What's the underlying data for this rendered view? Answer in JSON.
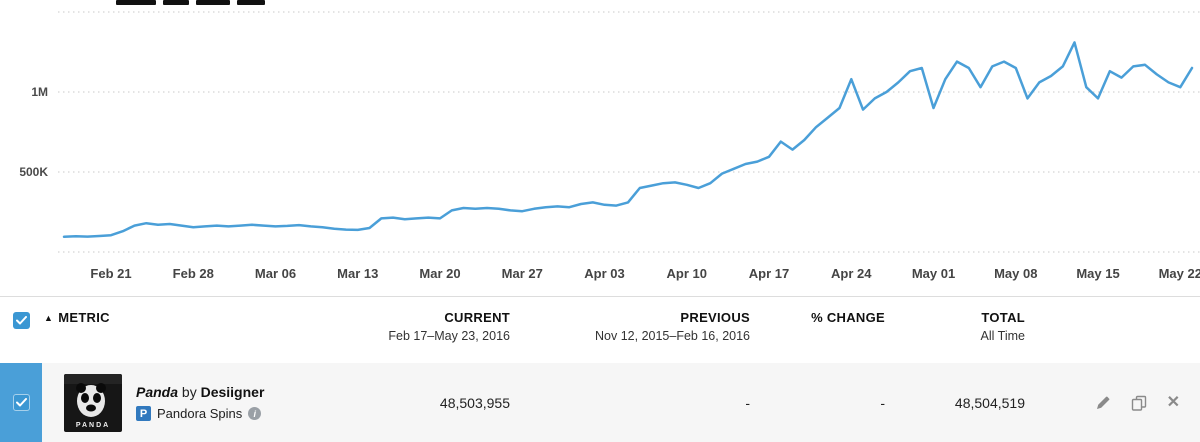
{
  "colors": {
    "line": "#4a9fd8",
    "accent_checkbox": "#3b97d3",
    "row_band": "#4a9fd8",
    "gridline": "#c9c9c9"
  },
  "chart": {
    "y_axis_labels": [
      {
        "text": "1M",
        "value": 1000000
      },
      {
        "text": "500K",
        "value": 500000
      }
    ],
    "gridline_values": [
      1500000,
      1000000,
      500000,
      0
    ],
    "x_tick_labels": [
      "Feb 21",
      "Feb 28",
      "Mar 06",
      "Mar 13",
      "Mar 20",
      "Mar 27",
      "Apr 03",
      "Apr 10",
      "Apr 17",
      "Apr 24",
      "May 01",
      "May 08",
      "May 15",
      "May 22"
    ]
  },
  "chart_data": {
    "type": "line",
    "title": "Pandora Spins — Panda by Desiigner",
    "xlabel": "",
    "ylabel": "",
    "ylim": [
      0,
      1500000
    ],
    "legend": "none",
    "grid": "horizontal-dotted",
    "x": [
      "Feb 17",
      "Feb 18",
      "Feb 19",
      "Feb 20",
      "Feb 21",
      "Feb 22",
      "Feb 23",
      "Feb 24",
      "Feb 25",
      "Feb 26",
      "Feb 27",
      "Feb 28",
      "Feb 29",
      "Mar 01",
      "Mar 02",
      "Mar 03",
      "Mar 04",
      "Mar 05",
      "Mar 06",
      "Mar 07",
      "Mar 08",
      "Mar 09",
      "Mar 10",
      "Mar 11",
      "Mar 12",
      "Mar 13",
      "Mar 14",
      "Mar 15",
      "Mar 16",
      "Mar 17",
      "Mar 18",
      "Mar 19",
      "Mar 20",
      "Mar 21",
      "Mar 22",
      "Mar 23",
      "Mar 24",
      "Mar 25",
      "Mar 26",
      "Mar 27",
      "Mar 28",
      "Mar 29",
      "Mar 30",
      "Mar 31",
      "Apr 01",
      "Apr 02",
      "Apr 03",
      "Apr 04",
      "Apr 05",
      "Apr 06",
      "Apr 07",
      "Apr 08",
      "Apr 09",
      "Apr 10",
      "Apr 11",
      "Apr 12",
      "Apr 13",
      "Apr 14",
      "Apr 15",
      "Apr 16",
      "Apr 17",
      "Apr 18",
      "Apr 19",
      "Apr 20",
      "Apr 21",
      "Apr 22",
      "Apr 23",
      "Apr 24",
      "Apr 25",
      "Apr 26",
      "Apr 27",
      "Apr 28",
      "Apr 29",
      "Apr 30",
      "May 01",
      "May 02",
      "May 03",
      "May 04",
      "May 05",
      "May 06",
      "May 07",
      "May 08",
      "May 09",
      "May 10",
      "May 11",
      "May 12",
      "May 13",
      "May 14",
      "May 15",
      "May 16",
      "May 17",
      "May 18",
      "May 19",
      "May 20",
      "May 21",
      "May 22",
      "May 23"
    ],
    "values": [
      95000,
      98000,
      96000,
      100000,
      105000,
      130000,
      165000,
      180000,
      170000,
      175000,
      165000,
      155000,
      160000,
      165000,
      160000,
      165000,
      170000,
      165000,
      160000,
      163000,
      168000,
      160000,
      155000,
      145000,
      140000,
      138000,
      150000,
      210000,
      215000,
      205000,
      210000,
      215000,
      210000,
      260000,
      275000,
      270000,
      275000,
      270000,
      260000,
      255000,
      270000,
      280000,
      285000,
      280000,
      300000,
      310000,
      295000,
      290000,
      310000,
      400000,
      415000,
      430000,
      435000,
      420000,
      400000,
      430000,
      490000,
      520000,
      550000,
      565000,
      595000,
      690000,
      640000,
      700000,
      780000,
      840000,
      900000,
      1080000,
      890000,
      960000,
      1000000,
      1060000,
      1130000,
      1150000,
      900000,
      1080000,
      1190000,
      1150000,
      1030000,
      1160000,
      1190000,
      1150000,
      960000,
      1060000,
      1100000,
      1160000,
      1310000,
      1030000,
      960000,
      1130000,
      1090000,
      1160000,
      1170000,
      1110000,
      1060000,
      1030000,
      1150000
    ]
  },
  "table": {
    "header": {
      "sort_icon": "▲",
      "metric_label": "METRIC",
      "current": {
        "label": "CURRENT",
        "sub": "Feb 17–May 23, 2016"
      },
      "previous": {
        "label": "PREVIOUS",
        "sub": "Nov 12, 2015–Feb 16, 2016"
      },
      "change": {
        "label": "% CHANGE"
      },
      "total": {
        "label": "TOTAL",
        "sub": "All Time"
      }
    },
    "row": {
      "song_title": "Panda",
      "by_text": "by",
      "artist": "Desiigner",
      "pandora_p": "P",
      "metric_name": "Pandora Spins",
      "info_glyph": "i",
      "album_caption": "PANDA",
      "current": "48,503,955",
      "previous": "-",
      "change": "-",
      "total": "48,504,519",
      "close_glyph": "✕"
    }
  }
}
